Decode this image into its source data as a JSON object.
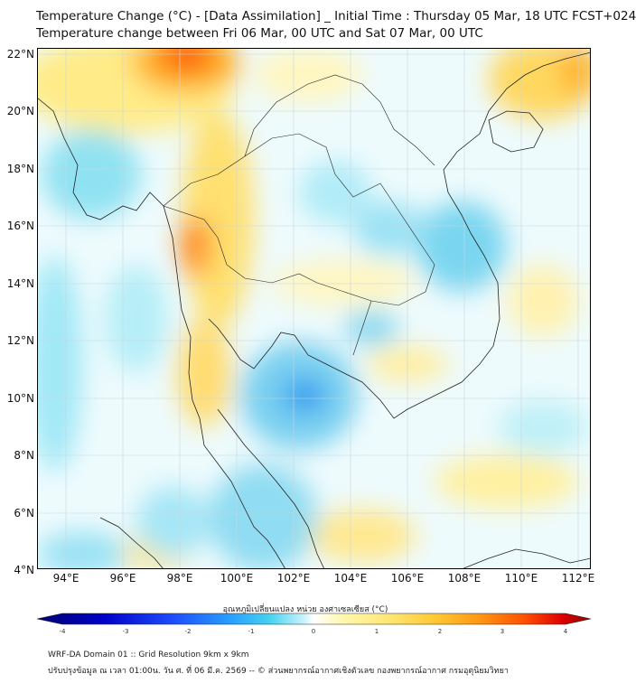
{
  "title": {
    "line1": "Temperature Change (°C) - [Data Assimilation] _ Initial Time : Thursday 05 Mar, 18 UTC FCST+024",
    "line2": "Temperature change between Fri 06 Mar, 00 UTC and Sat 07 Mar, 00 UTC"
  },
  "lat_ticks": [
    "22°N",
    "20°N",
    "18°N",
    "16°N",
    "14°N",
    "12°N",
    "10°N",
    "8°N",
    "6°N",
    "4°N"
  ],
  "lon_ticks": [
    "94°E",
    "96°E",
    "98°E",
    "100°E",
    "102°E",
    "104°E",
    "106°E",
    "108°E",
    "110°E",
    "112°E"
  ],
  "colorbar": {
    "label": "อุณหภูมิเปลี่ยนแปลง หน่วย องศาเซลเซียส (°C)",
    "ticks": [
      "-4",
      "-3",
      "-2",
      "-1",
      "0",
      "1",
      "2",
      "3",
      "4"
    ],
    "colors": [
      "#000070",
      "#0000c8",
      "#1e50ff",
      "#28a0ff",
      "#46d2f0",
      "#a0ecf8",
      "#ffffff",
      "#fff8b0",
      "#ffe878",
      "#ffc832",
      "#ff9614",
      "#ff5000",
      "#dc0000",
      "#8c0000"
    ]
  },
  "footer": {
    "line1": "WRF-DA Domain 01 :: Grid Resolution 9km x 9km",
    "line2": "ปรับปรุงข้อมูล ณ เวลา 01:00น. วัน ศ. ที่ 06 มี.ค. 2569 -- © ส่วนพยากรณ์อากาศเชิงตัวเลข กองพยากรณ์อากาศ กรมอุตุนิยมวิทยา"
  }
}
